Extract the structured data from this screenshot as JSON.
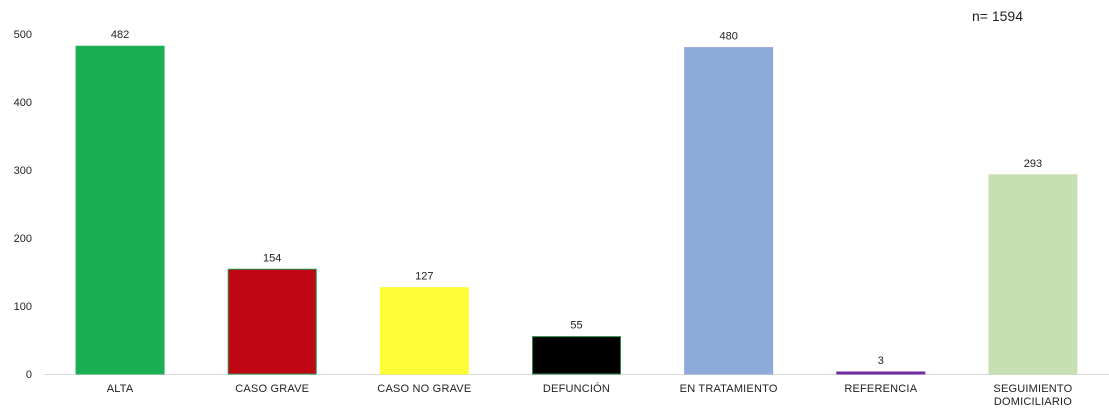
{
  "chart_data": {
    "type": "bar",
    "title": "",
    "xlabel": "",
    "ylabel": "",
    "annotation": "n= 1594",
    "ylim": [
      0,
      500
    ],
    "yticks": [
      0,
      100,
      200,
      300,
      400,
      500
    ],
    "grid": false,
    "categories": [
      {
        "label_lines": [
          "ALTA"
        ],
        "value": 482,
        "value_label": "482",
        "color": "#1aae55",
        "stroke": "#1aae55"
      },
      {
        "label_lines": [
          "CASO GRAVE"
        ],
        "value": 154,
        "value_label": "154",
        "color": "#c00814",
        "stroke": "#2f8a46"
      },
      {
        "label_lines": [
          "CASO NO GRAVE"
        ],
        "value": 127,
        "value_label": "127",
        "color": "#fefe36",
        "stroke": "#fefe36"
      },
      {
        "label_lines": [
          "DEFUNCIÓN"
        ],
        "value": 55,
        "value_label": "55",
        "color": "#000000",
        "stroke": "#2f8a46"
      },
      {
        "label_lines": [
          "EN TRATAMIENTO"
        ],
        "value": 480,
        "value_label": "480",
        "color": "#8eaad8",
        "stroke": "#8eaad8"
      },
      {
        "label_lines": [
          "REFERENCIA"
        ],
        "value": 3,
        "value_label": "3",
        "color": "#7030a0",
        "stroke": "#7030a0"
      },
      {
        "label_lines": [
          "SEGUIMIENTO",
          "DOMICILIARIO"
        ],
        "value": 293,
        "value_label": "293",
        "color": "#c6e0b4",
        "stroke": "#c6e0b4"
      }
    ]
  }
}
